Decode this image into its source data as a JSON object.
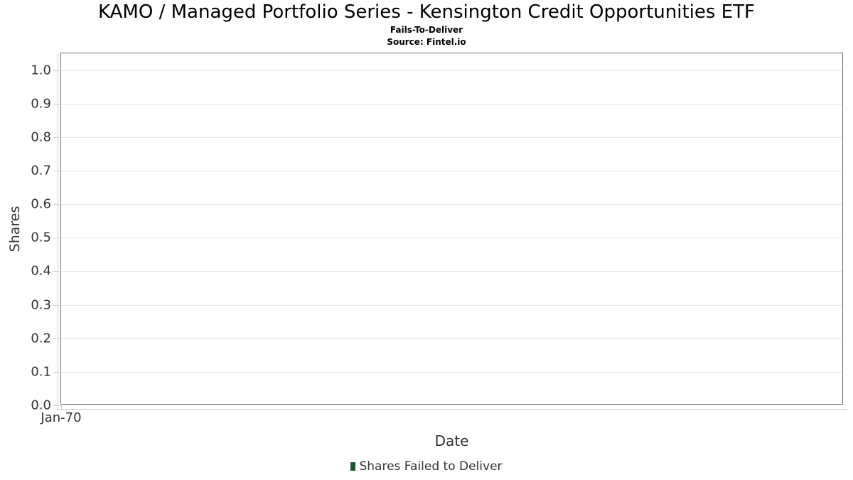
{
  "header": {
    "title": "KAMO / Managed Portfolio Series - Kensington Credit Opportunities ETF",
    "subtitle": "Fails-To-Deliver",
    "source": "Source: Fintel.io"
  },
  "chart_data": {
    "type": "bar",
    "title": "KAMO / Managed Portfolio Series - Kensington Credit Opportunities ETF",
    "subtitle": "Fails-To-Deliver",
    "source": "Source: Fintel.io",
    "xlabel": "Date",
    "ylabel": "Shares",
    "x_ticks": [
      "Jan-70"
    ],
    "y_ticks": [
      "0.0",
      "0.1",
      "0.2",
      "0.3",
      "0.4",
      "0.5",
      "0.6",
      "0.7",
      "0.8",
      "0.9",
      "1.0"
    ],
    "ylim": [
      0,
      1.05
    ],
    "grid": true,
    "legend_position": "bottom",
    "series": [
      {
        "name": "Shares Failed to Deliver",
        "color": "#1e5632",
        "x": [],
        "values": []
      }
    ]
  },
  "legend": {
    "items": [
      {
        "label": "Shares Failed to Deliver",
        "color": "#1e5632"
      }
    ]
  },
  "colors": {
    "plot_border": "#6e6e6e",
    "gridline": "#e5e5e5",
    "tick": "#cccccc",
    "axis_text": "#333333",
    "title_text": "#000000",
    "series_green": "#1e5632"
  }
}
